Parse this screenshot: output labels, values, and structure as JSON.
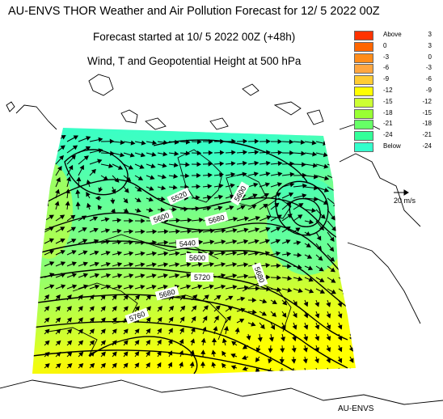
{
  "title": "AU-ENVS THOR Weather and Air Pollution Forecast for 12/ 5 2022  00Z",
  "subtitle": "Forecast started at 10/ 5 2022  00Z (+48h)",
  "variable": "Wind, T and Geopotential Height at 500 hPa",
  "legend": {
    "rows": [
      {
        "lo": "Above",
        "hi": "3",
        "color": "#ff3300"
      },
      {
        "lo": "0",
        "hi": "3",
        "color": "#ff6600"
      },
      {
        "lo": "-3",
        "hi": "0",
        "color": "#ff8c1a"
      },
      {
        "lo": "-6",
        "hi": "-3",
        "color": "#ffa640"
      },
      {
        "lo": "-9",
        "hi": "-6",
        "color": "#ffcc33"
      },
      {
        "lo": "-12",
        "hi": "-9",
        "color": "#ffff00"
      },
      {
        "lo": "-15",
        "hi": "-12",
        "color": "#ccff33"
      },
      {
        "lo": "-18",
        "hi": "-15",
        "color": "#99ff33"
      },
      {
        "lo": "-21",
        "hi": "-18",
        "color": "#66ff66"
      },
      {
        "lo": "-24",
        "hi": "-21",
        "color": "#33ff99"
      },
      {
        "lo": "Below",
        "hi": "-24",
        "color": "#33ffcc"
      }
    ]
  },
  "wind_reference": "20 m/s",
  "contour_labels": [
    "5520",
    "5600",
    "5440",
    "5600",
    "5680",
    "5720",
    "5760",
    "5600",
    "5680",
    "5680"
  ],
  "credit": "AU-ENVS"
}
